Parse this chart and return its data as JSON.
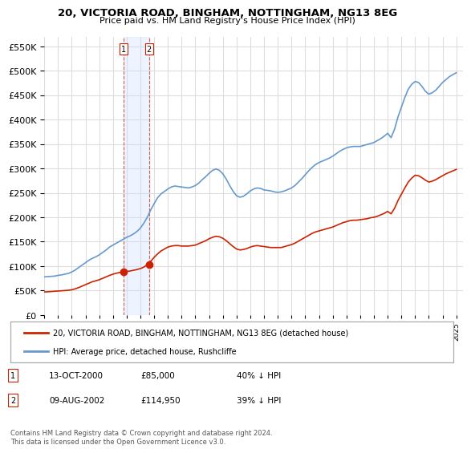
{
  "title": "20, VICTORIA ROAD, BINGHAM, NOTTINGHAM, NG13 8EG",
  "subtitle": "Price paid vs. HM Land Registry's House Price Index (HPI)",
  "legend_label_red": "20, VICTORIA ROAD, BINGHAM, NOTTINGHAM, NG13 8EG (detached house)",
  "legend_label_blue": "HPI: Average price, detached house, Rushcliffe",
  "footer": "Contains HM Land Registry data © Crown copyright and database right 2024.\nThis data is licensed under the Open Government Licence v3.0.",
  "transactions": [
    {
      "label": "1",
      "date": "13-OCT-2000",
      "price": 85000,
      "pct": "40% ↓ HPI",
      "year": 2000.79
    },
    {
      "label": "2",
      "date": "09-AUG-2002",
      "price": 114950,
      "pct": "39% ↓ HPI",
      "year": 2002.62
    }
  ],
  "hpi_color": "#6699cc",
  "price_color": "#cc2200",
  "background_color": "#ffffff",
  "grid_color": "#dddddd",
  "ylim": [
    0,
    570000
  ],
  "xlim_start": 1995.0,
  "xlim_end": 2025.5,
  "hpi_data": {
    "years": [
      1995.0,
      1995.25,
      1995.5,
      1995.75,
      1996.0,
      1996.25,
      1996.5,
      1996.75,
      1997.0,
      1997.25,
      1997.5,
      1997.75,
      1998.0,
      1998.25,
      1998.5,
      1998.75,
      1999.0,
      1999.25,
      1999.5,
      1999.75,
      2000.0,
      2000.25,
      2000.5,
      2000.75,
      2001.0,
      2001.25,
      2001.5,
      2001.75,
      2002.0,
      2002.25,
      2002.5,
      2002.75,
      2003.0,
      2003.25,
      2003.5,
      2003.75,
      2004.0,
      2004.25,
      2004.5,
      2004.75,
      2005.0,
      2005.25,
      2005.5,
      2005.75,
      2006.0,
      2006.25,
      2006.5,
      2006.75,
      2007.0,
      2007.25,
      2007.5,
      2007.75,
      2008.0,
      2008.25,
      2008.5,
      2008.75,
      2009.0,
      2009.25,
      2009.5,
      2009.75,
      2010.0,
      2010.25,
      2010.5,
      2010.75,
      2011.0,
      2011.25,
      2011.5,
      2011.75,
      2012.0,
      2012.25,
      2012.5,
      2012.75,
      2013.0,
      2013.25,
      2013.5,
      2013.75,
      2014.0,
      2014.25,
      2014.5,
      2014.75,
      2015.0,
      2015.25,
      2015.5,
      2015.75,
      2016.0,
      2016.25,
      2016.5,
      2016.75,
      2017.0,
      2017.25,
      2017.5,
      2017.75,
      2018.0,
      2018.25,
      2018.5,
      2018.75,
      2019.0,
      2019.25,
      2019.5,
      2019.75,
      2020.0,
      2020.25,
      2020.5,
      2020.75,
      2021.0,
      2021.25,
      2021.5,
      2021.75,
      2022.0,
      2022.25,
      2022.5,
      2022.75,
      2023.0,
      2023.25,
      2023.5,
      2023.75,
      2024.0,
      2024.25,
      2024.5,
      2024.75,
      2025.0
    ],
    "values": [
      78000,
      78500,
      79000,
      79500,
      81000,
      82000,
      83500,
      85000,
      88000,
      92000,
      97000,
      102000,
      107000,
      112000,
      116000,
      119000,
      123000,
      128000,
      133000,
      139000,
      143000,
      147000,
      151000,
      155000,
      159000,
      162000,
      166000,
      171000,
      178000,
      188000,
      200000,
      215000,
      228000,
      240000,
      248000,
      253000,
      258000,
      262000,
      264000,
      263000,
      262000,
      261000,
      260000,
      262000,
      265000,
      270000,
      277000,
      283000,
      290000,
      296000,
      299000,
      296000,
      289000,
      278000,
      265000,
      253000,
      244000,
      241000,
      243000,
      248000,
      254000,
      258000,
      260000,
      259000,
      256000,
      255000,
      254000,
      252000,
      251000,
      252000,
      254000,
      257000,
      260000,
      265000,
      272000,
      279000,
      287000,
      295000,
      302000,
      308000,
      312000,
      315000,
      318000,
      321000,
      325000,
      330000,
      335000,
      339000,
      342000,
      344000,
      345000,
      345000,
      345000,
      347000,
      349000,
      351000,
      353000,
      357000,
      361000,
      366000,
      372000,
      363000,
      380000,
      405000,
      425000,
      445000,
      462000,
      472000,
      478000,
      476000,
      468000,
      458000,
      452000,
      455000,
      460000,
      468000,
      476000,
      482000,
      488000,
      492000,
      496000
    ]
  },
  "price_paid_data": {
    "years": [
      1995.0,
      1995.25,
      1995.5,
      1995.75,
      1996.0,
      1996.25,
      1996.5,
      1996.75,
      1997.0,
      1997.25,
      1997.5,
      1997.75,
      1998.0,
      1998.25,
      1998.5,
      1998.75,
      1999.0,
      1999.25,
      1999.5,
      1999.75,
      2000.0,
      2000.25,
      2000.5,
      2000.75,
      2001.0,
      2001.25,
      2001.5,
      2001.75,
      2002.0,
      2002.25,
      2002.5,
      2002.75,
      2003.0,
      2003.25,
      2003.5,
      2003.75,
      2004.0,
      2004.25,
      2004.5,
      2004.75,
      2005.0,
      2005.25,
      2005.5,
      2005.75,
      2006.0,
      2006.25,
      2006.5,
      2006.75,
      2007.0,
      2007.25,
      2007.5,
      2007.75,
      2008.0,
      2008.25,
      2008.5,
      2008.75,
      2009.0,
      2009.25,
      2009.5,
      2009.75,
      2010.0,
      2010.25,
      2010.5,
      2010.75,
      2011.0,
      2011.25,
      2011.5,
      2011.75,
      2012.0,
      2012.25,
      2012.5,
      2012.75,
      2013.0,
      2013.25,
      2013.5,
      2013.75,
      2014.0,
      2014.25,
      2014.5,
      2014.75,
      2015.0,
      2015.25,
      2015.5,
      2015.75,
      2016.0,
      2016.25,
      2016.5,
      2016.75,
      2017.0,
      2017.25,
      2017.5,
      2017.75,
      2018.0,
      2018.25,
      2018.5,
      2018.75,
      2019.0,
      2019.25,
      2019.5,
      2019.75,
      2020.0,
      2020.25,
      2020.5,
      2020.75,
      2021.0,
      2021.25,
      2021.5,
      2021.75,
      2022.0,
      2022.25,
      2022.5,
      2022.75,
      2023.0,
      2023.25,
      2023.5,
      2023.75,
      2024.0,
      2024.25,
      2024.5,
      2024.75,
      2025.0
    ],
    "values": [
      47000,
      47500,
      48000,
      48500,
      49000,
      49500,
      50000,
      50500,
      51500,
      53500,
      56000,
      59000,
      62000,
      65000,
      68000,
      70000,
      72000,
      75000,
      78000,
      81000,
      83500,
      85500,
      87000,
      88500,
      89000,
      90000,
      91500,
      93000,
      95000,
      98000,
      103000,
      110000,
      118000,
      125000,
      131000,
      135000,
      139000,
      141000,
      142000,
      142000,
      141000,
      141000,
      141000,
      142000,
      143000,
      146000,
      149000,
      152000,
      156000,
      159000,
      161000,
      160000,
      157000,
      152000,
      146000,
      140000,
      135000,
      133000,
      134000,
      136000,
      139000,
      141000,
      142000,
      141000,
      140000,
      139000,
      138000,
      138000,
      138000,
      138000,
      140000,
      142000,
      144000,
      147000,
      151000,
      155000,
      159000,
      163000,
      167000,
      170000,
      172000,
      174000,
      176000,
      178000,
      180000,
      183000,
      186000,
      189000,
      191000,
      193000,
      194000,
      194000,
      195000,
      196000,
      197000,
      199000,
      200000,
      202000,
      205000,
      208000,
      212000,
      207000,
      218000,
      234000,
      247000,
      260000,
      272000,
      280000,
      286000,
      285000,
      281000,
      276000,
      272000,
      274000,
      277000,
      281000,
      285000,
      289000,
      292000,
      295000,
      298000
    ]
  }
}
